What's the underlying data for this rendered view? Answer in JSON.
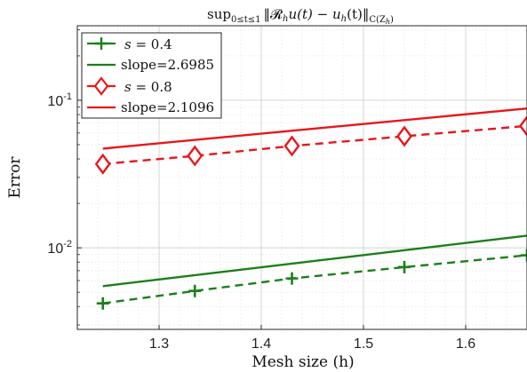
{
  "chart_data": {
    "type": "line",
    "title": "sup_{0≤t≤1} ‖R_h u(t) − u_h(t)‖_{C(Z_h)}",
    "title_parts": {
      "sup": "sup",
      "sub": "0≤t≤1",
      "body": "‖𝓡",
      "h1": "h",
      "mid": "u(t) − u",
      "h2": "h",
      "end": "(t)‖",
      "norm_sub": "C(Z",
      "norm_sub_h": "h",
      "norm_sub_end": ")"
    },
    "xlabel": "Mesh size (h)",
    "ylabel": "Error",
    "xscale": "linear",
    "yscale": "log",
    "xlim": [
      1.22,
      1.66
    ],
    "ylim": [
      0.0028,
      0.32
    ],
    "xticks": [
      1.3,
      1.4,
      1.5,
      1.6
    ],
    "xtick_labels": [
      "1.3",
      "1.4",
      "1.5",
      "1.6"
    ],
    "yticks": [
      0.01,
      0.1
    ],
    "ytick_labels": [
      {
        "base": "10",
        "exp": "-2"
      },
      {
        "base": "10",
        "exp": "-1"
      }
    ],
    "grid": true,
    "legend_position": "top-left",
    "series": [
      {
        "name": "s = 0.4",
        "name_parts": {
          "var": "s",
          "rest": " = 0.4"
        },
        "color": "#1a7f1a",
        "style": "dashed",
        "marker": "plus",
        "x": [
          1.245,
          1.335,
          1.43,
          1.54,
          1.66
        ],
        "y": [
          0.0042,
          0.0051,
          0.0062,
          0.0074,
          0.0089
        ]
      },
      {
        "name": "slope=2.6985",
        "color": "#1a7f1a",
        "style": "solid",
        "marker": "none",
        "x": [
          1.245,
          1.66
        ],
        "y": [
          0.0055,
          0.0121
        ]
      },
      {
        "name": "s = 0.8",
        "name_parts": {
          "var": "s",
          "rest": " = 0.8"
        },
        "color": "#e8161b",
        "style": "dashed",
        "marker": "diamond",
        "x": [
          1.245,
          1.335,
          1.43,
          1.54,
          1.66
        ],
        "y": [
          0.037,
          0.042,
          0.049,
          0.057,
          0.067
        ]
      },
      {
        "name": "slope=2.1096",
        "color": "#e8161b",
        "style": "solid",
        "marker": "none",
        "x": [
          1.245,
          1.66
        ],
        "y": [
          0.047,
          0.088
        ]
      }
    ]
  }
}
